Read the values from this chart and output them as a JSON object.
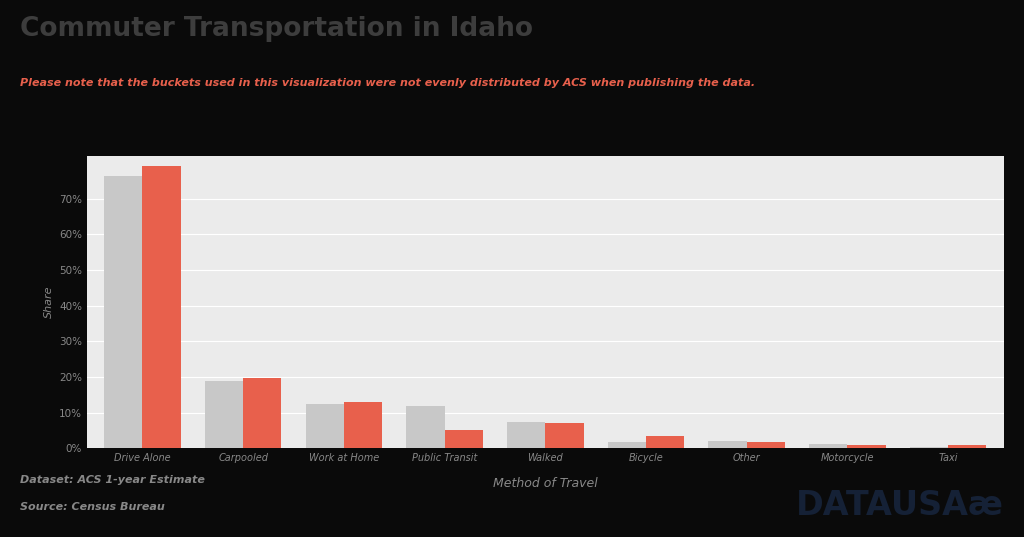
{
  "title": "Commuter Transportation in Idaho",
  "subtitle": "Please note that the buckets used in this visualization were not evenly distributed by ACS when publishing the data.",
  "xlabel": "Method of Travel",
  "ylabel": "Share",
  "categories": [
    "Drive Alone",
    "Carpooled",
    "Work at Home",
    "Public Transit",
    "Walked",
    "Bicycle",
    "Other",
    "Motorcycle",
    "Taxi"
  ],
  "idaho_values": [
    0.762,
    0.19,
    0.125,
    0.12,
    0.073,
    0.018,
    0.02,
    0.012,
    0.005
  ],
  "national_values": [
    0.79,
    0.197,
    0.13,
    0.052,
    0.072,
    0.035,
    0.018,
    0.01,
    0.01
  ],
  "idaho_color": "#c8c8c8",
  "national_color": "#e8604c",
  "fig_bg_color": "#0a0a0a",
  "plot_bg_color": "#ebebeb",
  "title_color": "#3d3d3d",
  "subtitle_color": "#e8604c",
  "axis_label_color": "#888888",
  "tick_color": "#888888",
  "grid_color": "#ffffff",
  "footer_text1": "Dataset: ACS 1-year Estimate",
  "footer_text2": "Source: Census Bureau",
  "datausa_text": "DATAUSAæ",
  "datausa_color": "#152136",
  "footer_color": "#888888",
  "ylim": [
    0,
    0.82
  ],
  "yticks": [
    0.0,
    0.1,
    0.2,
    0.3,
    0.4,
    0.5,
    0.6,
    0.7
  ],
  "ytick_labels": [
    "0%",
    "10%",
    "20%",
    "30%",
    "40%",
    "50%",
    "60%",
    "70%"
  ],
  "bar_width": 0.38
}
